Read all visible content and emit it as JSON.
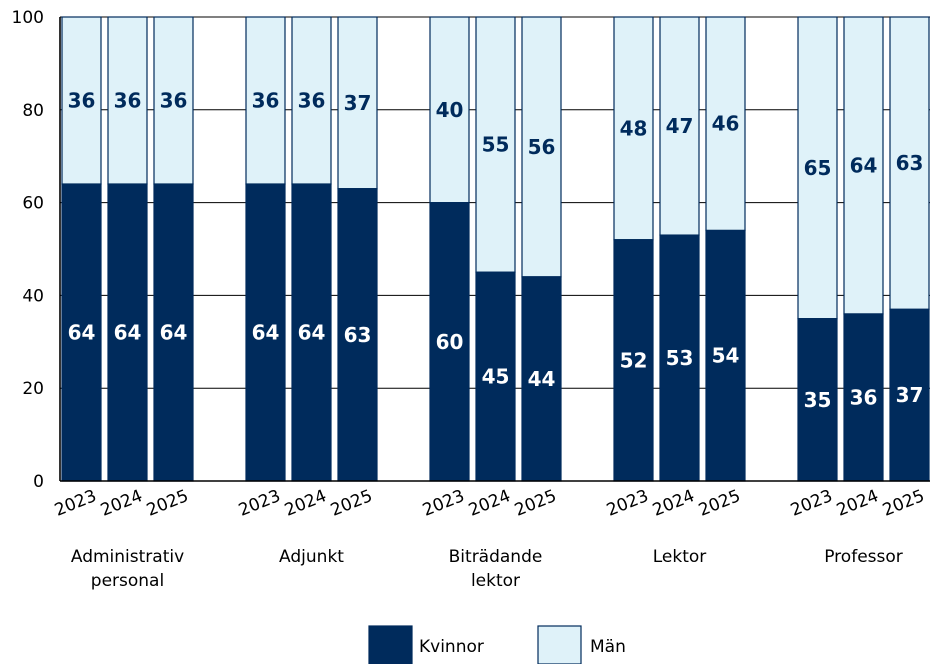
{
  "chart_data": {
    "type": "bar",
    "stacked": true,
    "groups": [
      {
        "label": "Administrativ personal",
        "years": [
          "2023",
          "2024",
          "2025"
        ],
        "kvinnor": [
          64,
          64,
          64
        ],
        "man": [
          36,
          36,
          36
        ]
      },
      {
        "label": "Adjunkt",
        "years": [
          "2023",
          "2024",
          "2025"
        ],
        "kvinnor": [
          64,
          64,
          63
        ],
        "man": [
          36,
          36,
          37
        ]
      },
      {
        "label": "Biträdande lektor",
        "years": [
          "2023",
          "2024",
          "2025"
        ],
        "kvinnor": [
          60,
          45,
          44
        ],
        "man": [
          40,
          55,
          56
        ]
      },
      {
        "label": "Lektor",
        "years": [
          "2023",
          "2024",
          "2025"
        ],
        "kvinnor": [
          52,
          53,
          54
        ],
        "man": [
          48,
          47,
          46
        ]
      },
      {
        "label": "Professor",
        "years": [
          "2023",
          "2024",
          "2025"
        ],
        "kvinnor": [
          35,
          36,
          37
        ],
        "man": [
          65,
          64,
          63
        ]
      }
    ],
    "series": [
      {
        "name": "Kvinnor",
        "color": "#002b5c"
      },
      {
        "name": "Män",
        "color": "#dff2f9"
      }
    ],
    "y_ticks": [
      "0",
      "20",
      "40",
      "60",
      "80",
      "100"
    ],
    "ylim": [
      0,
      100
    ],
    "grid": true,
    "legend_position": "bottom-center"
  }
}
